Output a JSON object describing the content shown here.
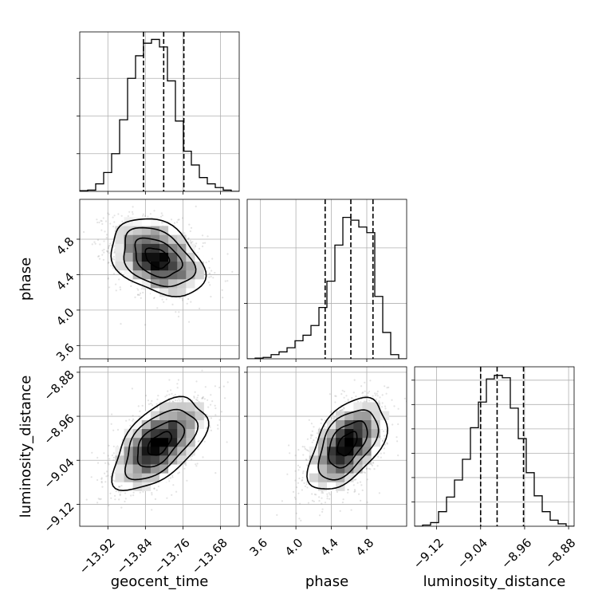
{
  "chart_data": {
    "type": "corner",
    "parameters": [
      {
        "name": "geocent_time",
        "label": "geocent_time",
        "range": [
          -13.98,
          -13.64
        ],
        "ticks": [
          -13.92,
          -13.84,
          -13.76,
          -13.68
        ],
        "tick_labels": [
          "−13.92",
          "−13.84",
          "−13.76",
          "−13.68"
        ],
        "quantiles": [
          -13.844,
          -13.801,
          -13.758
        ],
        "hist_edges": [
          -13.98,
          -13.963,
          -13.946,
          -13.929,
          -13.912,
          -13.895,
          -13.878,
          -13.861,
          -13.844,
          -13.827,
          -13.81,
          -13.793,
          -13.776,
          -13.759,
          -13.742,
          -13.725,
          -13.708,
          -13.691,
          -13.674,
          -13.657,
          -13.64
        ],
        "hist_counts": [
          0.5,
          1,
          6,
          15,
          30,
          57,
          90,
          108,
          118,
          121,
          115,
          88,
          56,
          32,
          21,
          11,
          6,
          3,
          1,
          0
        ],
        "hist_ylim": [
          0,
          127
        ],
        "hist_yticks": [
          0,
          30,
          60,
          90
        ]
      },
      {
        "name": "phase",
        "label": "phase",
        "range": [
          3.45,
          5.25
        ],
        "ticks": [
          3.6,
          4.0,
          4.4,
          4.8
        ],
        "tick_labels": [
          "3.6",
          "4.0",
          "4.4",
          "4.8"
        ],
        "quantiles": [
          4.33,
          4.62,
          4.87
        ],
        "hist_edges": [
          3.45,
          3.54,
          3.63,
          3.72,
          3.81,
          3.9,
          3.99,
          4.08,
          4.17,
          4.26,
          4.35,
          4.44,
          4.53,
          4.62,
          4.71,
          4.8,
          4.89,
          4.98,
          5.07,
          5.16,
          5.25
        ],
        "hist_counts": [
          0,
          0.5,
          1,
          3,
          5,
          8,
          13,
          17,
          24,
          37,
          56,
          82,
          102,
          100,
          95,
          91,
          45,
          19,
          3,
          0
        ],
        "hist_ylim": [
          0,
          115
        ],
        "hist_yticks": [
          0,
          40,
          80
        ]
      },
      {
        "name": "luminosity_distance",
        "label": "luminosity_distance",
        "range": [
          -9.16,
          -8.87
        ],
        "ticks": [
          -9.12,
          -9.04,
          -8.96,
          -8.88
        ],
        "tick_labels": [
          "−9.12",
          "−9.04",
          "−8.96",
          "−8.88"
        ],
        "quantiles": [
          -9.04,
          -9.01,
          -8.962
        ],
        "hist_edges": [
          -9.16,
          -9.1455,
          -9.131,
          -9.1165,
          -9.102,
          -9.0875,
          -9.073,
          -9.0585,
          -9.044,
          -9.0295,
          -9.015,
          -9.0005,
          -8.986,
          -8.9715,
          -8.957,
          -8.9425,
          -8.928,
          -8.9135,
          -8.899,
          -8.8845,
          -8.87
        ],
        "hist_counts": [
          0,
          1,
          3,
          12,
          24,
          38,
          55,
          81,
          102,
          121,
          124,
          122,
          97,
          72,
          44,
          25,
          12,
          5,
          2,
          0
        ],
        "hist_ylim": [
          0,
          131
        ],
        "hist_yticks": [
          0,
          20,
          40,
          60,
          80,
          100,
          120
        ]
      }
    ],
    "pairs": [
      {
        "x": 0,
        "y": 1,
        "center": [
          -13.815,
          4.59
        ],
        "sd": [
          0.05,
          0.22
        ],
        "rho": -0.35
      },
      {
        "x": 0,
        "y": 2,
        "center": [
          -13.81,
          -9.01
        ],
        "sd": [
          0.05,
          0.042
        ],
        "rho": 0.55
      },
      {
        "x": 1,
        "y": 2,
        "center": [
          4.58,
          -9.01
        ],
        "sd": [
          0.22,
          0.042
        ],
        "rho": 0.5
      }
    ],
    "contour_levels": [
      0.12,
      0.39,
      0.68,
      0.86
    ],
    "grid": true,
    "quantile_style": "dashed"
  },
  "colors": {
    "line": "#000000",
    "grid": "#b0b0b0",
    "points": "#808080",
    "background": "#ffffff"
  }
}
